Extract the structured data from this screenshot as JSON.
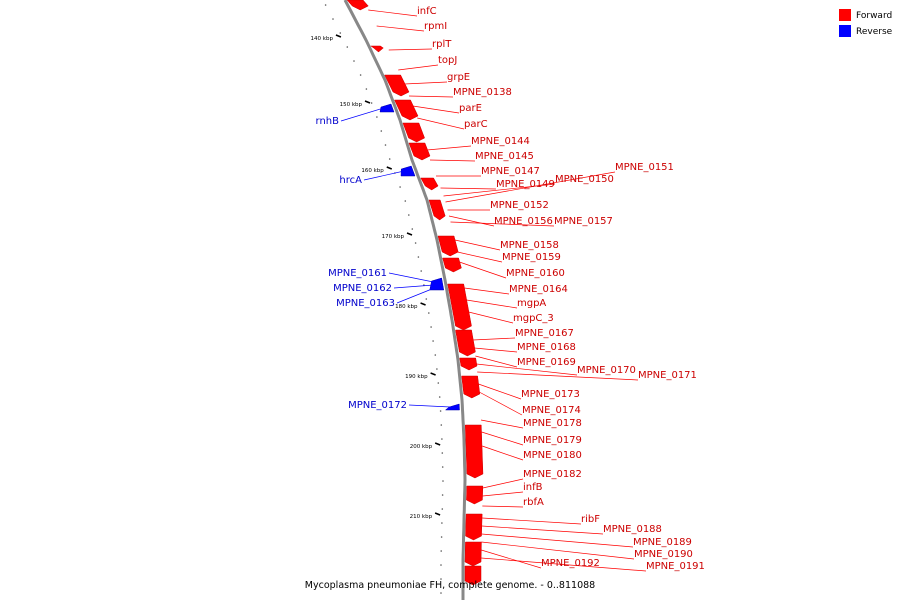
{
  "caption": "Mycoplasma pneumoniae FH, complete genome. - 0..811088",
  "legend": [
    {
      "label": "Forward",
      "color": "#ff0000"
    },
    {
      "label": "Reverse",
      "color": "#0000ff"
    }
  ],
  "colors": {
    "forward": "#ff0000",
    "reverse": "#0000ff",
    "backbone": "#808080"
  },
  "ticks": [
    "140 kbp",
    "150 kbp",
    "160 kbp",
    "170 kbp",
    "180 kbp",
    "190 kbp",
    "200 kbp",
    "210 kbp"
  ],
  "forward_labels": [
    "infC",
    "rpmI",
    "rplT",
    "topJ",
    "grpE",
    "MPNE_0138",
    "parE",
    "parC",
    "MPNE_0144",
    "MPNE_0145",
    "MPNE_0147",
    "MPNE_0149",
    "MPNE_0150",
    "MPNE_0151",
    "MPNE_0152",
    "MPNE_0156",
    "MPNE_0157",
    "MPNE_0158",
    "MPNE_0159",
    "MPNE_0160",
    "MPNE_0164",
    "mgpA",
    "mgpC_3",
    "MPNE_0167",
    "MPNE_0168",
    "MPNE_0169",
    "MPNE_0170",
    "MPNE_0171",
    "MPNE_0173",
    "MPNE_0174",
    "MPNE_0178",
    "MPNE_0179",
    "MPNE_0180",
    "MPNE_0182",
    "infB",
    "rbfA",
    "ribF",
    "MPNE_0188",
    "MPNE_0189",
    "MPNE_0190",
    "MPNE_0192",
    "MPNE_0191"
  ],
  "reverse_labels": [
    "rnhB",
    "hrcA",
    "MPNE_0161",
    "MPNE_0162",
    "MPNE_0163",
    "MPNE_0172"
  ]
}
